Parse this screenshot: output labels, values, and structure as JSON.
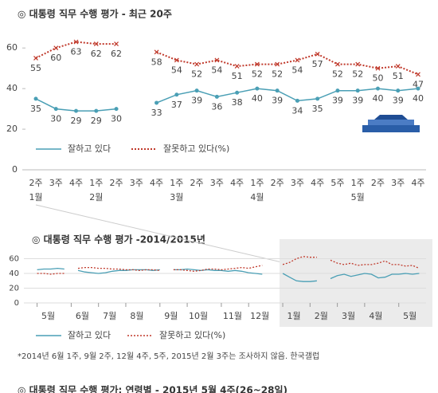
{
  "charts": [
    {
      "chart_data": {
        "type": "line",
        "title": "◎  대통령 직무 수행 평가 - 최근 20주",
        "categories": [
          "2주",
          "3주",
          "4주",
          "1주",
          "2주",
          "3주",
          "4주",
          "1주",
          "2주",
          "3주",
          "4주",
          "1주",
          "2주",
          "3주",
          "4주",
          "5주",
          "1주",
          "2주",
          "3주",
          "4주"
        ],
        "month_labels": [
          "1월",
          null,
          null,
          "2월",
          null,
          null,
          null,
          "3월",
          null,
          null,
          null,
          "4월",
          null,
          null,
          null,
          null,
          "5월",
          null,
          null,
          null
        ],
        "series": [
          {
            "name": "잘하고 있다",
            "color": "#4a9fb5",
            "values": [
              35,
              30,
              29,
              29,
              30,
              null,
              33,
              37,
              39,
              36,
              38,
              40,
              39,
              34,
              35,
              39,
              39,
              40,
              39,
              40
            ]
          },
          {
            "name": "잘못하고 있다(%)",
            "color": "#c0392b",
            "values": [
              55,
              60,
              63,
              62,
              62,
              null,
              58,
              54,
              52,
              54,
              51,
              52,
              52,
              54,
              57,
              52,
              52,
              50,
              51,
              47
            ]
          }
        ],
        "ylim": [
          0,
          64
        ],
        "yticks": [
          0,
          20,
          40,
          60
        ],
        "grid": false
      }
    },
    {
      "chart_data": {
        "type": "line",
        "title": "◎  대통령 직무 수행 평가 -2014/2015년",
        "x": [
          0,
          1,
          2,
          3,
          4,
          5,
          6,
          7,
          8,
          9,
          10,
          11,
          12,
          13,
          14,
          15,
          16,
          17,
          18,
          19,
          20,
          21,
          22,
          23,
          24,
          25,
          26,
          27,
          28,
          29,
          30,
          31,
          32,
          33,
          34,
          35,
          36,
          37,
          38,
          39,
          40,
          41,
          42,
          43,
          44,
          45,
          46,
          47,
          48,
          49,
          50,
          51,
          52,
          53,
          54,
          55,
          56
        ],
        "series": [
          {
            "name": "잘하고 있다",
            "color": "#4a9fb5",
            "values": [
              45,
              46,
              46,
              47,
              46,
              null,
              44,
              42,
              41,
              40,
              41,
              43,
              44,
              44,
              45,
              45,
              45,
              44,
              45,
              null,
              45,
              45,
              46,
              45,
              44,
              45,
              44,
              44,
              43,
              44,
              43,
              41,
              40,
              39,
              null,
              null,
              40,
              35,
              30,
              29,
              29,
              30,
              null,
              33,
              37,
              39,
              36,
              38,
              40,
              39,
              34,
              35,
              39,
              39,
              40,
              39,
              40
            ]
          },
          {
            "name": "잘못하고 있다(%)",
            "color": "#c0392b",
            "values": [
              40,
              40,
              39,
              40,
              40,
              null,
              47,
              48,
              48,
              47,
              47,
              46,
              46,
              45,
              45,
              44,
              45,
              45,
              44,
              null,
              45,
              45,
              44,
              43,
              44,
              46,
              46,
              45,
              46,
              47,
              48,
              47,
              49,
              51,
              null,
              null,
              52,
              55,
              60,
              63,
              62,
              62,
              null,
              58,
              54,
              52,
              54,
              51,
              52,
              52,
              54,
              57,
              52,
              52,
              50,
              51,
              47
            ]
          }
        ],
        "xlim": [
          -1,
          57
        ],
        "xticks": [
          {
            "value": 0,
            "label": "5월"
          },
          {
            "value": 5,
            "label": "6월"
          },
          {
            "value": 9,
            "label": "7월"
          },
          {
            "value": 13,
            "label": "8월"
          },
          {
            "value": 18,
            "label": "9월"
          },
          {
            "value": 22,
            "label": "10월"
          },
          {
            "value": 27,
            "label": "11월"
          },
          {
            "value": 31,
            "label": "12월"
          },
          {
            "value": 36,
            "label": "1월"
          },
          {
            "value": 40,
            "label": "2월"
          },
          {
            "value": 44,
            "label": "3월"
          },
          {
            "value": 48,
            "label": "4월"
          },
          {
            "value": 53,
            "label": "5월"
          }
        ],
        "ylim": [
          0,
          66
        ],
        "yticks": [
          0,
          20,
          40,
          60
        ],
        "grid": true,
        "note": "*2014년 6월 1주, 9월 2주, 12월 4주, 5주, 2015년 2월 3주는 조사하지 않음. 한국갤럽"
      }
    }
  ],
  "footer": "◎  대통령 직무 수행 평가: 연령별 - 2015년 5월 4주(26~28일)"
}
